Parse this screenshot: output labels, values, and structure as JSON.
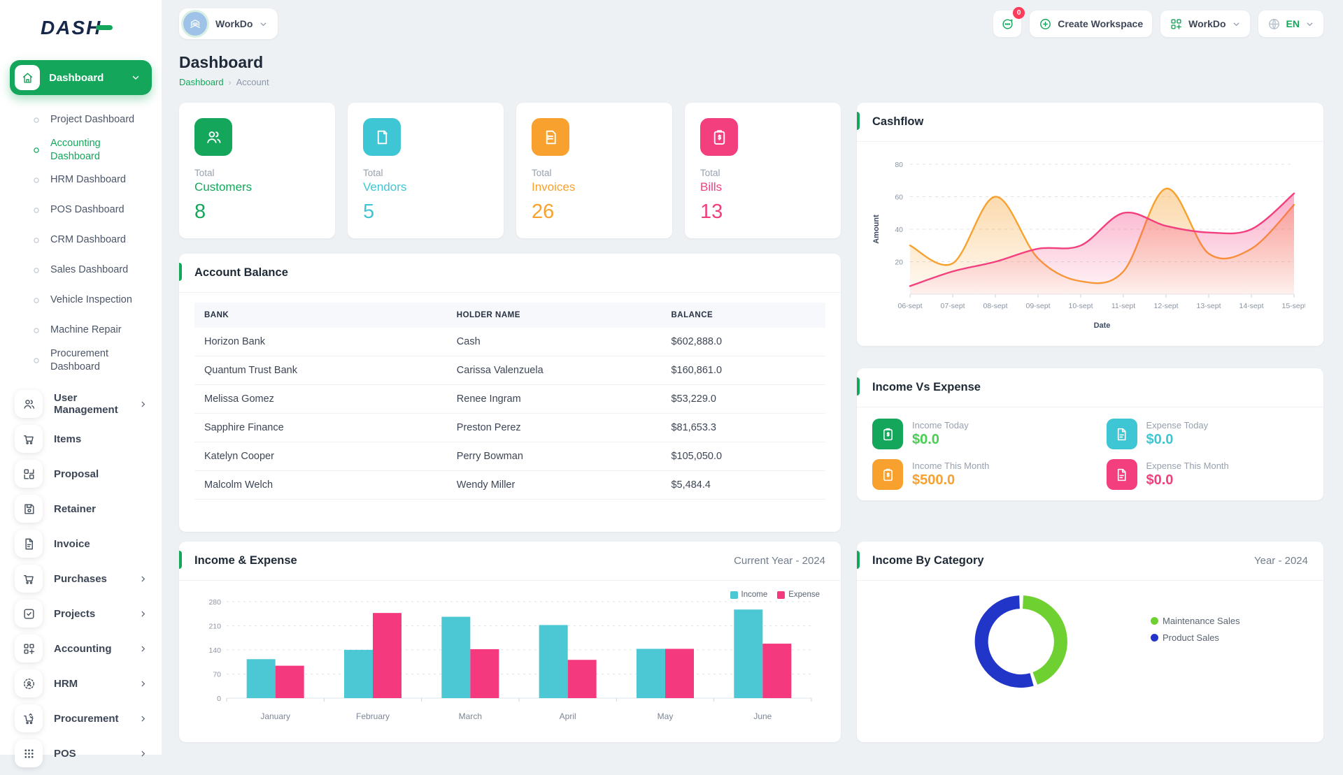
{
  "app": {
    "logo_text": "DASH"
  },
  "colors": {
    "primary": "#14a75c",
    "cyan": "#3fc6d4",
    "orange": "#f8a12e",
    "pink": "#f43f7f",
    "donut_green": "#6fd131",
    "donut_blue": "#2135c8"
  },
  "topbar": {
    "workspace_label": "WorkDo",
    "messages_badge": "0",
    "create_workspace_label": "Create Workspace",
    "workdo_menu_label": "WorkDo",
    "language": "EN"
  },
  "sidebar": {
    "dashboard_group": {
      "label": "Dashboard",
      "icon": "home-icon"
    },
    "submenu": [
      {
        "label": "Project Dashboard",
        "active": false
      },
      {
        "label": "Accounting Dashboard",
        "active": true
      },
      {
        "label": "HRM Dashboard",
        "active": false
      },
      {
        "label": "POS Dashboard",
        "active": false
      },
      {
        "label": "CRM Dashboard",
        "active": false
      },
      {
        "label": "Sales Dashboard",
        "active": false
      },
      {
        "label": "Vehicle Inspection",
        "active": false
      },
      {
        "label": "Machine Repair",
        "active": false
      },
      {
        "label": "Procurement Dashboard",
        "active": false
      }
    ],
    "items": [
      {
        "label": "User Management",
        "icon": "users-icon",
        "chevron": true
      },
      {
        "label": "Items",
        "icon": "cart-icon",
        "chevron": false
      },
      {
        "label": "Proposal",
        "icon": "qr-icon",
        "chevron": false
      },
      {
        "label": "Retainer",
        "icon": "save-icon",
        "chevron": false
      },
      {
        "label": "Invoice",
        "icon": "file-icon",
        "chevron": false
      },
      {
        "label": "Purchases",
        "icon": "cart-icon",
        "chevron": true
      },
      {
        "label": "Projects",
        "icon": "check-square-icon",
        "chevron": true
      },
      {
        "label": "Accounting",
        "icon": "grid-plus-icon",
        "chevron": true
      },
      {
        "label": "HRM",
        "icon": "person-badge-icon",
        "chevron": true
      },
      {
        "label": "Procurement",
        "icon": "cart-arrows-icon",
        "chevron": true
      },
      {
        "label": "POS",
        "icon": "dots-grid-icon",
        "chevron": true
      }
    ]
  },
  "page": {
    "title": "Dashboard",
    "breadcrumb": [
      "Dashboard",
      "Account"
    ]
  },
  "stat_cards": [
    {
      "label": "Total",
      "name": "Customers",
      "value": "8",
      "color": "#14a75c",
      "icon": "users-icon"
    },
    {
      "label": "Total",
      "name": "Vendors",
      "value": "5",
      "color": "#3fc6d4",
      "icon": "file-blank-icon"
    },
    {
      "label": "Total",
      "name": "Invoices",
      "value": "26",
      "color": "#f8a12e",
      "icon": "invoice-icon"
    },
    {
      "label": "Total",
      "name": "Bills",
      "value": "13",
      "color": "#f43f7f",
      "icon": "clipboard-dollar-icon"
    }
  ],
  "cards": {
    "cashflow": {
      "title": "Cashflow"
    },
    "account_balance": {
      "title": "Account Balance",
      "table": {
        "headers": [
          "BANK",
          "HOLDER NAME",
          "BALANCE"
        ],
        "rows": [
          [
            "Horizon Bank",
            "Cash",
            "$602,888.0"
          ],
          [
            "Quantum Trust Bank",
            "Carissa Valenzuela",
            "$160,861.0"
          ],
          [
            "Melissa Gomez",
            "Renee Ingram",
            "$53,229.0"
          ],
          [
            "Sapphire Finance",
            "Preston Perez",
            "$81,653.3"
          ],
          [
            "Katelyn Cooper",
            "Perry Bowman",
            "$105,050.0"
          ],
          [
            "Malcolm Welch",
            "Wendy Miller",
            "$5,484.4"
          ]
        ]
      }
    },
    "income_vs_expense": {
      "title": "Income Vs Expense",
      "stats": [
        {
          "label": "Income Today",
          "value": "$0.0",
          "icon": "clipboard-dollar-icon",
          "icon_color": "#14a75c",
          "value_color": "#45d14f"
        },
        {
          "label": "Expense Today",
          "value": "$0.0",
          "icon": "file-text-icon",
          "icon_color": "#3fc6d4",
          "value_color": "#3fc6d4"
        },
        {
          "label": "Income This Month",
          "value": "$500.0",
          "icon": "clipboard-dollar-icon",
          "icon_color": "#f8a12e",
          "value_color": "#f8a12e"
        },
        {
          "label": "Expense This Month",
          "value": "$0.0",
          "icon": "file-text-icon",
          "icon_color": "#f43f7f",
          "value_color": "#f43f7f"
        }
      ]
    },
    "income_expense_chart": {
      "title": "Income & Expense",
      "period": "Current Year - 2024"
    },
    "income_by_category": {
      "title": "Income By Category",
      "period": "Year - 2024"
    }
  },
  "chart_data": [
    {
      "id": "cashflow",
      "type": "area",
      "title": "Cashflow",
      "x": [
        "06-sept",
        "07-sept",
        "08-sept",
        "09-sept",
        "10-sept",
        "11-sept",
        "12-sept",
        "13-sept",
        "14-sept",
        "15-sept"
      ],
      "series": [
        {
          "name": "series-1",
          "color": "#f8a12e",
          "values": [
            30,
            19,
            60,
            22,
            8,
            14,
            65,
            25,
            28,
            55
          ]
        },
        {
          "name": "series-2",
          "color": "#f43f7f",
          "values": [
            5,
            14,
            20,
            28,
            30,
            50,
            42,
            38,
            40,
            62
          ]
        }
      ],
      "xlabel": "Date",
      "ylabel": "Amount",
      "ylim": [
        0,
        80
      ],
      "yticks": [
        20,
        40,
        60,
        80
      ],
      "grid": true,
      "legend_position": "none"
    },
    {
      "id": "income_expense",
      "type": "bar",
      "title": "Income & Expense",
      "period_label": "Current Year - 2024",
      "categories": [
        "January",
        "February",
        "March",
        "April",
        "May",
        "June"
      ],
      "series": [
        {
          "name": "Income",
          "color": "#4cc7d4",
          "values": [
            113,
            140,
            236,
            212,
            143,
            257
          ]
        },
        {
          "name": "Expense",
          "color": "#f5397f",
          "values": [
            94,
            247,
            142,
            111,
            143,
            158
          ]
        }
      ],
      "ylim": [
        0,
        300
      ],
      "yticks": [
        0,
        70,
        140,
        210,
        280
      ],
      "grid": true,
      "legend_position": "top-right"
    },
    {
      "id": "income_by_category",
      "type": "donut",
      "title": "Income By Category",
      "period_label": "Year - 2024",
      "slices": [
        {
          "label": "Maintenance Sales",
          "color": "#6fd131",
          "value": 45
        },
        {
          "label": "Product Sales",
          "color": "#2135c8",
          "value": 55
        }
      ],
      "legend_position": "right"
    }
  ]
}
